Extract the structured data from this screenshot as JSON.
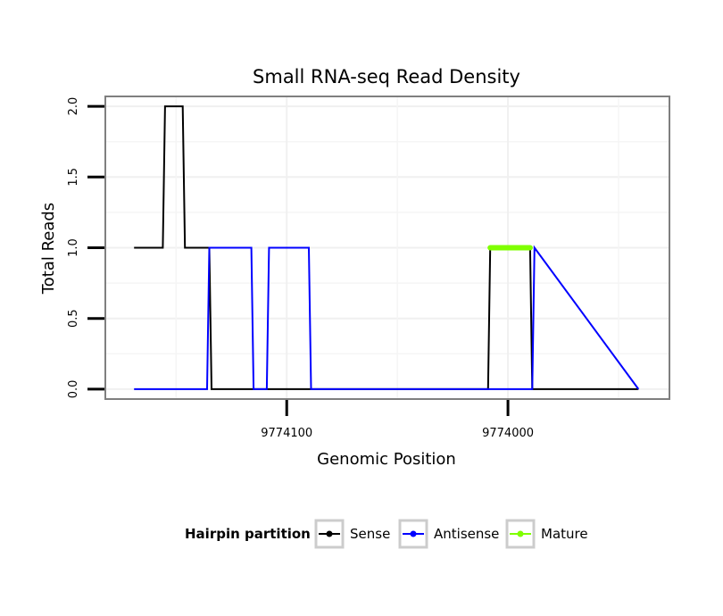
{
  "chart_data": {
    "type": "line",
    "title": "Small RNA-seq Read Density",
    "xlabel": "Genomic Position",
    "ylabel": "Total Reads",
    "x_reversed": true,
    "xlim": [
      9774182,
      9773927
    ],
    "ylim": [
      -0.07,
      2.07
    ],
    "x_ticks": [
      {
        "value": 9774100,
        "label": "9774100"
      },
      {
        "value": 9774000,
        "label": "9774000"
      }
    ],
    "y_ticks": [
      {
        "value": 0.0,
        "label": "0.0"
      },
      {
        "value": 0.5,
        "label": "0.5"
      },
      {
        "value": 1.0,
        "label": "1.0"
      },
      {
        "value": 1.5,
        "label": "1.5"
      },
      {
        "value": 2.0,
        "label": "2.0"
      }
    ],
    "grid": true,
    "legend": {
      "title": "Hairpin partition",
      "position": "bottom"
    },
    "series": [
      {
        "name": "Sense",
        "color": "#000000",
        "x": [
          9774169,
          9774156,
          9774155,
          9774147,
          9774146,
          9774135,
          9774134,
          9774009,
          9774008,
          9773990,
          9773989,
          9773941
        ],
        "values": [
          1,
          1,
          2,
          2,
          1,
          1,
          0,
          0,
          1,
          1,
          0,
          0
        ]
      },
      {
        "name": "Antisense",
        "color": "#0000ff",
        "x": [
          9774169,
          9774136,
          9774135,
          9774116,
          9774115,
          9774109,
          9774108,
          9774090,
          9774089,
          9773989,
          9773988,
          9773941
        ],
        "values": [
          0,
          0,
          1,
          1,
          0,
          0,
          1,
          1,
          0,
          0,
          1,
          0
        ]
      },
      {
        "name": "Mature",
        "color": "#7fff00",
        "x": [
          9774008,
          9773990
        ],
        "values": [
          1,
          1
        ]
      }
    ]
  }
}
